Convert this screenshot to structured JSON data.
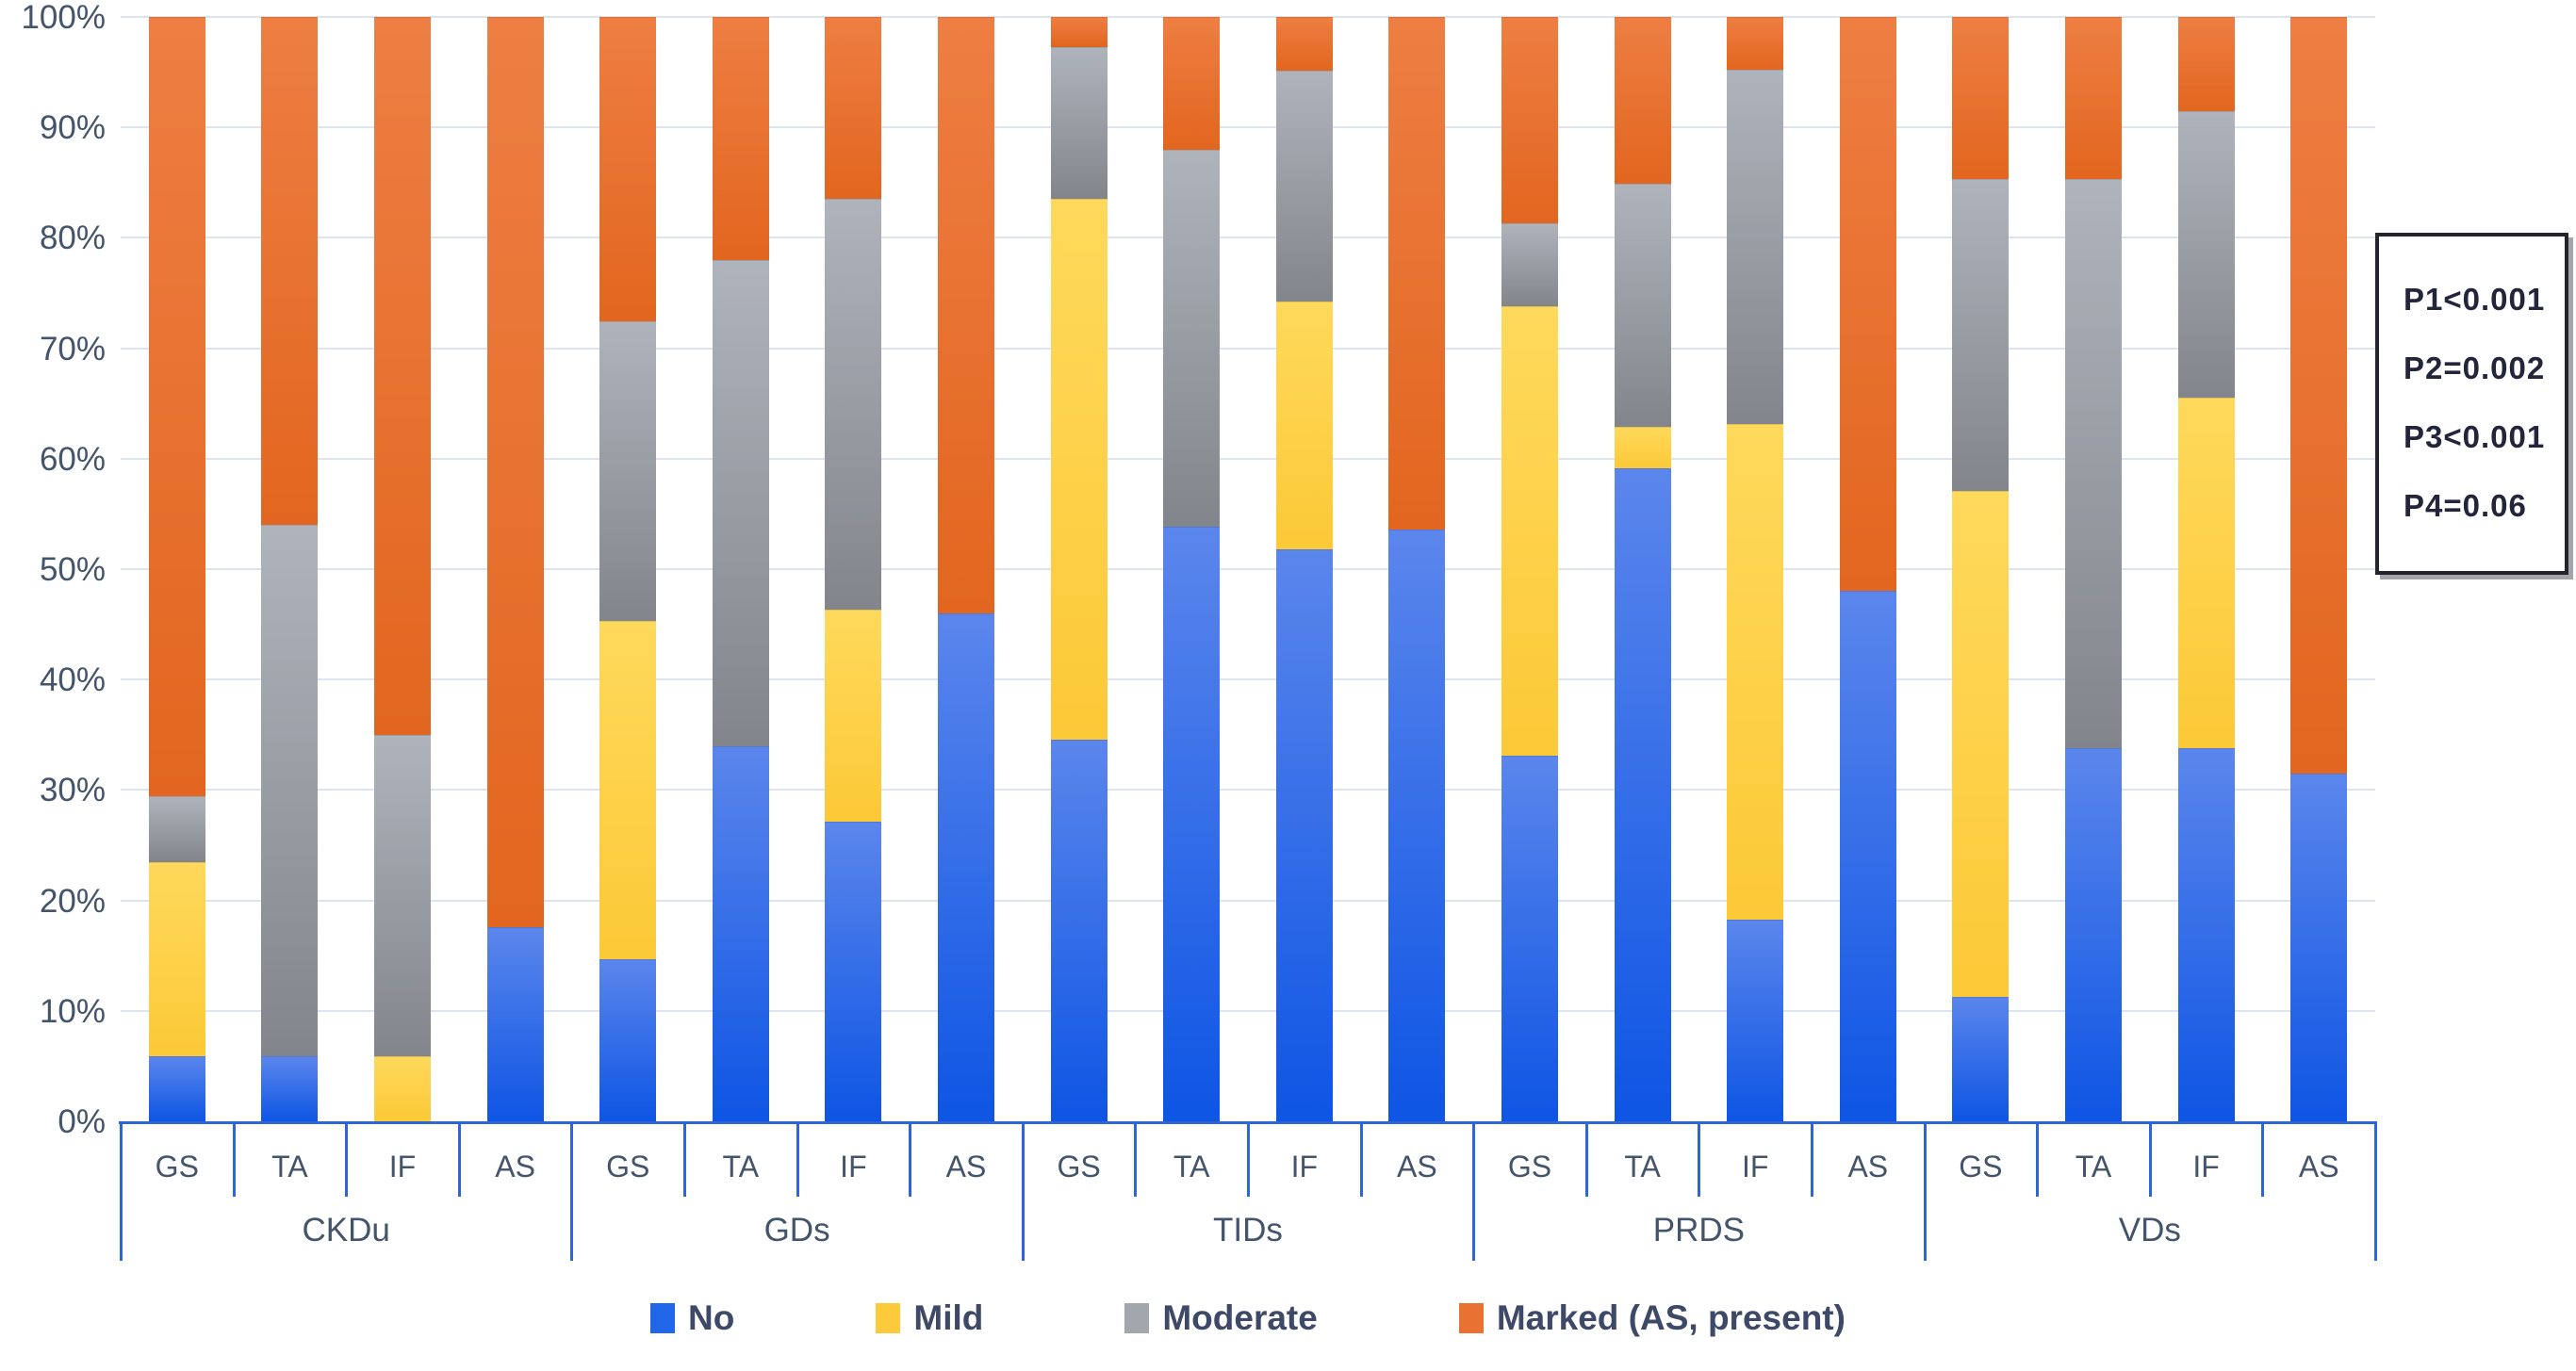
{
  "page": {
    "background": "#ffffff"
  },
  "chart_data": {
    "type": "bar",
    "stacked": true,
    "percent_stacked": true,
    "title": "",
    "xlabel": "",
    "ylabel": "",
    "ylim": [
      0,
      100
    ],
    "grid": true,
    "legend_position": "bottom",
    "y_axis": {
      "ticks": [
        {
          "value": 0,
          "label": "0%"
        },
        {
          "value": 10,
          "label": "10%"
        },
        {
          "value": 20,
          "label": "20%"
        },
        {
          "value": 30,
          "label": "30%"
        },
        {
          "value": 40,
          "label": "40%"
        },
        {
          "value": 50,
          "label": "50%"
        },
        {
          "value": 60,
          "label": "60%"
        },
        {
          "value": 70,
          "label": "70%"
        },
        {
          "value": 80,
          "label": "80%"
        },
        {
          "value": 90,
          "label": "90%"
        },
        {
          "value": 100,
          "label": "100%"
        }
      ]
    },
    "series": [
      {
        "name": "No",
        "color_top": "#5b86ec",
        "color_bottom": "#0e55e4",
        "legend_color": "#2166e8"
      },
      {
        "name": "Mild",
        "color_top": "#ffd95c",
        "color_bottom": "#fcc937",
        "legend_color": "#fdca3b"
      },
      {
        "name": "Moderate",
        "color_top": "#afb4bc",
        "color_bottom": "#82858c",
        "legend_color": "#a2a6ad"
      },
      {
        "name": "Marked (AS, present)",
        "color_top": "#ee7e43",
        "color_bottom": "#e2661f",
        "legend_color": "#e97132"
      }
    ],
    "groups": [
      {
        "label": "CKDu",
        "bars": [
          {
            "label": "GS",
            "values": [
              5.9,
              17.6,
              5.9,
              70.6
            ]
          },
          {
            "label": "TA",
            "values": [
              5.9,
              0,
              48.1,
              46.0
            ]
          },
          {
            "label": "IF",
            "values": [
              0,
              5.9,
              29.1,
              65.0
            ]
          },
          {
            "label": "AS",
            "values": [
              17.6,
              0,
              0,
              82.4
            ]
          }
        ]
      },
      {
        "label": "GDs",
        "bars": [
          {
            "label": "GS",
            "values": [
              14.7,
              30.6,
              27.1,
              27.6
            ]
          },
          {
            "label": "TA",
            "values": [
              34.0,
              0,
              44.0,
              22.0
            ]
          },
          {
            "label": "IF",
            "values": [
              27.1,
              19.2,
              37.2,
              16.5
            ]
          },
          {
            "label": "AS",
            "values": [
              46.0,
              0,
              0,
              54.0
            ]
          }
        ]
      },
      {
        "label": "TIDs",
        "bars": [
          {
            "label": "GS",
            "values": [
              34.6,
              48.9,
              13.8,
              2.7
            ]
          },
          {
            "label": "TA",
            "values": [
              53.8,
              0,
              34.2,
              12.0
            ]
          },
          {
            "label": "IF",
            "values": [
              51.8,
              22.4,
              20.9,
              4.9
            ]
          },
          {
            "label": "AS",
            "values": [
              53.6,
              0,
              0,
              46.4
            ]
          }
        ]
      },
      {
        "label": "PRDS",
        "bars": [
          {
            "label": "GS",
            "values": [
              33.1,
              40.7,
              7.5,
              18.7
            ]
          },
          {
            "label": "TA",
            "values": [
              59.1,
              3.8,
              22.0,
              15.1
            ]
          },
          {
            "label": "IF",
            "values": [
              18.3,
              44.8,
              32.1,
              4.8
            ]
          },
          {
            "label": "AS",
            "values": [
              48.0,
              0,
              0,
              52.0
            ]
          }
        ]
      },
      {
        "label": "VDs",
        "bars": [
          {
            "label": "GS",
            "values": [
              11.3,
              45.8,
              28.2,
              14.7
            ]
          },
          {
            "label": "TA",
            "values": [
              33.8,
              0,
              51.5,
              14.7
            ]
          },
          {
            "label": "IF",
            "values": [
              33.8,
              31.7,
              26.0,
              8.5
            ]
          },
          {
            "label": "AS",
            "values": [
              31.5,
              0,
              0,
              68.5
            ]
          }
        ]
      }
    ]
  },
  "legend": {
    "items": [
      {
        "label": "No",
        "color": "#2166e8"
      },
      {
        "label": "Mild",
        "color": "#fdca3b"
      },
      {
        "label": "Moderate",
        "color": "#a2a6ad"
      },
      {
        "label": "Marked (AS, present)",
        "color": "#e97132"
      }
    ]
  },
  "annotation_box": {
    "lines": [
      "P1<0.001",
      "P2=0.002",
      "P3<0.001",
      "P4=0.06"
    ]
  },
  "style": {
    "gridline_color": "#dde4ef",
    "axis_color": "#2f66d6",
    "label_color": "#44546a"
  }
}
